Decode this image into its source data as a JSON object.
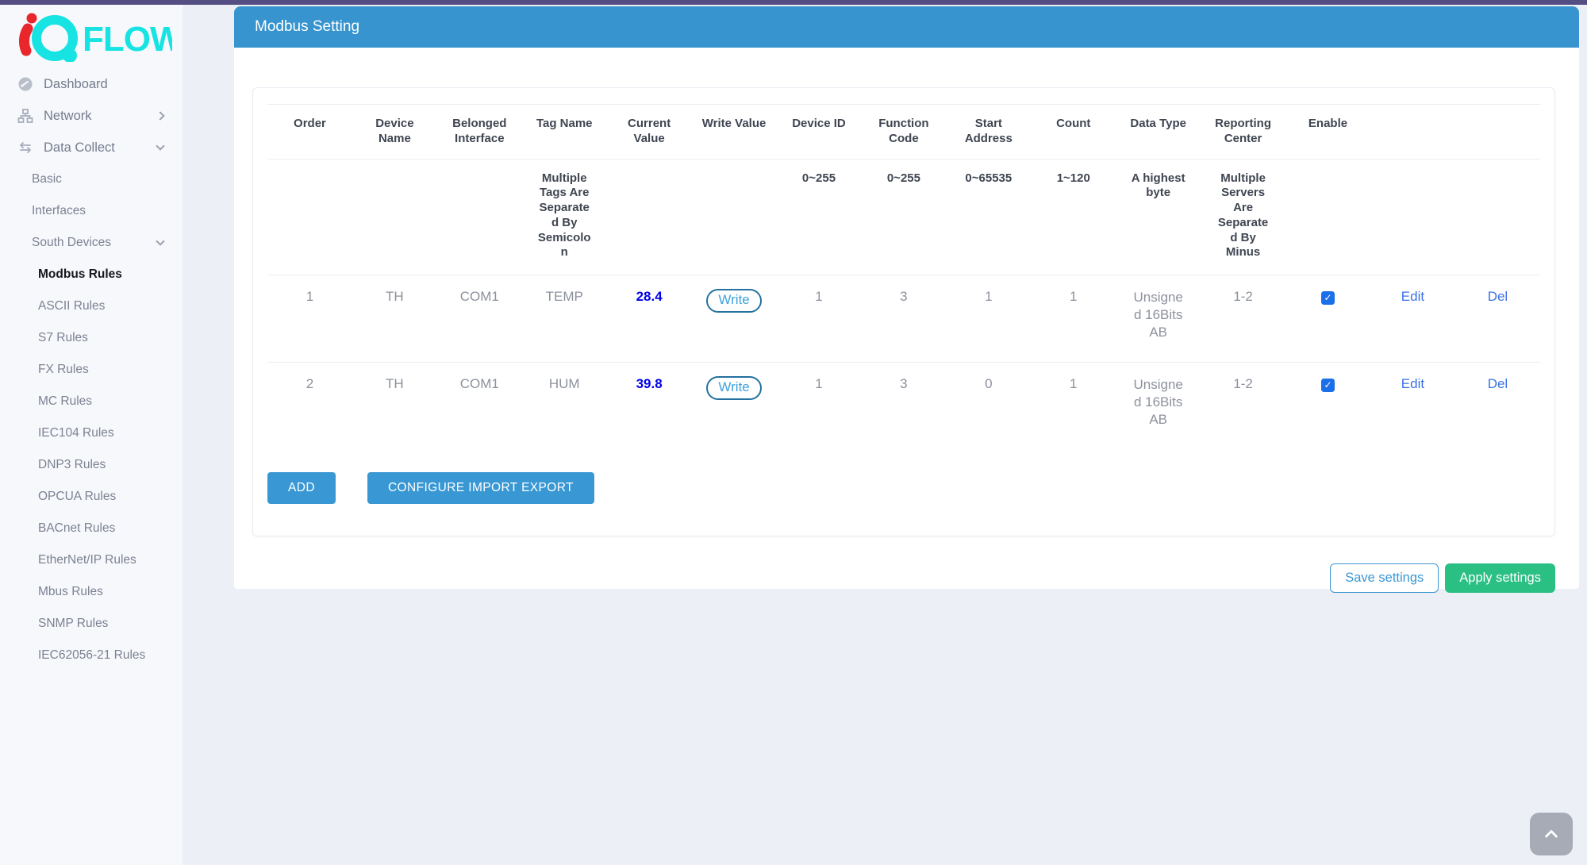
{
  "logo": {
    "brand": "FLOW",
    "mark": "iQ"
  },
  "header": {
    "title": "Modbus Setting"
  },
  "sidebar": {
    "items": [
      {
        "label": "Dashboard",
        "level": 0,
        "icon": "dashboard-icon",
        "chevron": null,
        "active": false
      },
      {
        "label": "Network",
        "level": 0,
        "icon": "network-icon",
        "chevron": "right",
        "active": false
      },
      {
        "label": "Data Collect",
        "level": 0,
        "icon": "data-collect-icon",
        "chevron": "down",
        "active": false
      },
      {
        "label": "Basic",
        "level": 1,
        "icon": null,
        "chevron": null,
        "active": false
      },
      {
        "label": "Interfaces",
        "level": 1,
        "icon": null,
        "chevron": null,
        "active": false
      },
      {
        "label": "South Devices",
        "level": 1,
        "icon": null,
        "chevron": "down",
        "active": false
      },
      {
        "label": "Modbus Rules",
        "level": 2,
        "icon": null,
        "chevron": null,
        "active": true
      },
      {
        "label": "ASCII Rules",
        "level": 2,
        "icon": null,
        "chevron": null,
        "active": false
      },
      {
        "label": "S7 Rules",
        "level": 2,
        "icon": null,
        "chevron": null,
        "active": false
      },
      {
        "label": "FX Rules",
        "level": 2,
        "icon": null,
        "chevron": null,
        "active": false
      },
      {
        "label": "MC Rules",
        "level": 2,
        "icon": null,
        "chevron": null,
        "active": false
      },
      {
        "label": "IEC104 Rules",
        "level": 2,
        "icon": null,
        "chevron": null,
        "active": false
      },
      {
        "label": "DNP3 Rules",
        "level": 2,
        "icon": null,
        "chevron": null,
        "active": false
      },
      {
        "label": "OPCUA Rules",
        "level": 2,
        "icon": null,
        "chevron": null,
        "active": false
      },
      {
        "label": "BACnet Rules",
        "level": 2,
        "icon": null,
        "chevron": null,
        "active": false
      },
      {
        "label": "EtherNet/IP Rules",
        "level": 2,
        "icon": null,
        "chevron": null,
        "active": false
      },
      {
        "label": "Mbus Rules",
        "level": 2,
        "icon": null,
        "chevron": null,
        "active": false
      },
      {
        "label": "SNMP Rules",
        "level": 2,
        "icon": null,
        "chevron": null,
        "active": false
      },
      {
        "label": "IEC62056-21 Rules",
        "level": 2,
        "icon": null,
        "chevron": null,
        "active": false
      }
    ]
  },
  "table": {
    "columns": [
      "Order",
      "Device Name",
      "Belonged Interface",
      "Tag Name",
      "Current Value",
      "Write Value",
      "Device ID",
      "Function Code",
      "Start Address",
      "Count",
      "Data Type",
      "Reporting Center",
      "Enable",
      "",
      ""
    ],
    "hints": [
      "",
      "",
      "",
      "Multiple Tags Are Separated By Semicolon",
      "",
      "",
      "0~255",
      "0~255",
      "0~65535",
      "1~120",
      "A highest byte",
      "Multiple Servers Are Separated By Minus",
      "",
      "",
      ""
    ],
    "write_label": "Write",
    "edit_label": "Edit",
    "del_label": "Del",
    "rows": [
      {
        "order": "1",
        "device_name": "TH",
        "belonged_interface": "COM1",
        "tag_name": "TEMP",
        "current_value": "28.4",
        "device_id": "1",
        "function_code": "3",
        "start_address": "1",
        "count": "1",
        "data_type": "Unsigned 16Bits AB",
        "reporting_center": "1-2",
        "enabled": true
      },
      {
        "order": "2",
        "device_name": "TH",
        "belonged_interface": "COM1",
        "tag_name": "HUM",
        "current_value": "39.8",
        "device_id": "1",
        "function_code": "3",
        "start_address": "0",
        "count": "1",
        "data_type": "Unsigned 16Bits AB",
        "reporting_center": "1-2",
        "enabled": true
      }
    ]
  },
  "actions": {
    "add": "ADD",
    "configure": "CONFIGURE IMPORT EXPORT"
  },
  "footer": {
    "save": "Save settings",
    "apply": "Apply settings"
  },
  "colors": {
    "accent_blue": "#3794ce",
    "value_blue": "#0101ec",
    "link_blue": "#3b72e4",
    "green": "#2abf83",
    "brand_cyan": "#18e3e3",
    "brand_red": "#e8262c",
    "top_strip": "#554e82"
  }
}
